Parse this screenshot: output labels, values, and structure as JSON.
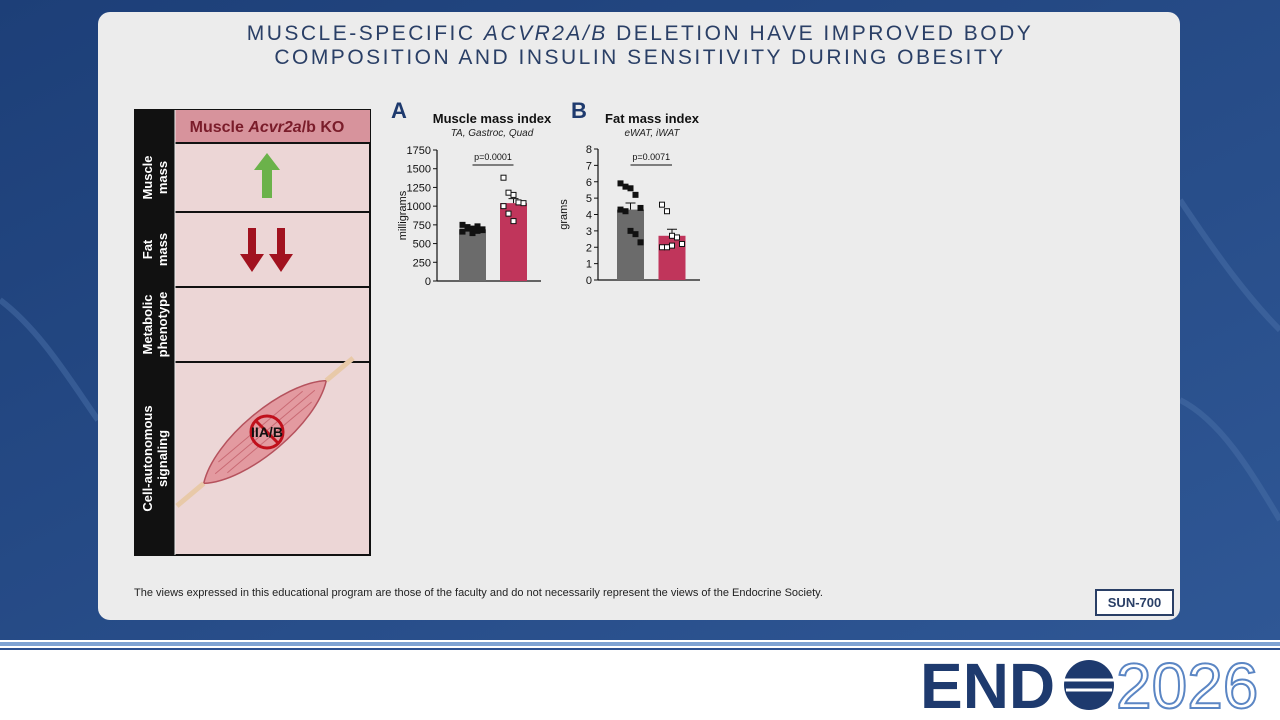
{
  "title_parts": [
    "MUSCLE-SPECIFIC ",
    "ACVR2A/B",
    " DELETION HAVE IMPROVED BODY COMPOSITION AND INSULIN SENSITIVITY DURING OBESITY"
  ],
  "panel": {
    "header": [
      "Muscle ",
      "Acvr2a",
      "/b KO"
    ],
    "rows": [
      [
        "Muscle",
        "mass"
      ],
      [
        "Fat",
        "mass"
      ],
      [
        "Metabolic",
        "phenotype"
      ],
      [
        "Cell-autonomous",
        "signaling"
      ]
    ],
    "receptor_label": "IIA/B"
  },
  "charts": [
    {
      "label": "A",
      "title": "Muscle mass index",
      "subtitle": "TA, Gastroc, Quad",
      "y_label": "milligrams",
      "annotation": "p=0.0001",
      "ylim": [
        0,
        1750
      ],
      "yticks": [
        0,
        250,
        500,
        750,
        1000,
        1250,
        1500,
        1750
      ],
      "series": [
        {
          "color": "#6b6b6b",
          "value": 690,
          "error": 30,
          "points": [
            750,
            720,
            700,
            730,
            680,
            660,
            700,
            640,
            670,
            690
          ]
        },
        {
          "color": "#c0355b",
          "value": 1040,
          "error": 60,
          "points": [
            1380,
            1180,
            1150,
            1050,
            1040,
            1000,
            900,
            800
          ]
        }
      ]
    },
    {
      "label": "B",
      "title": "Fat mass index",
      "subtitle": "eWAT, iWAT",
      "y_label": "grams",
      "annotation": "p=0.0071",
      "ylim": [
        0,
        8
      ],
      "yticks": [
        0,
        1,
        2,
        3,
        4,
        5,
        6,
        7,
        8
      ],
      "series": [
        {
          "color": "#6b6b6b",
          "value": 4.3,
          "error": 0.4,
          "points": [
            5.9,
            5.7,
            5.6,
            5.2,
            4.4,
            4.3,
            4.2,
            3.0,
            2.8,
            2.3
          ]
        },
        {
          "color": "#c0355b",
          "value": 2.7,
          "error": 0.4,
          "points": [
            4.6,
            4.2,
            2.7,
            2.6,
            2.2,
            2.0,
            2.0,
            2.1
          ]
        }
      ]
    }
  ],
  "footer": {
    "disclaimer": "The views expressed in this educational program are those of the faculty and do not necessarily represent the views of the Endocrine Society.",
    "code": "SUN-700"
  },
  "logo": {
    "brand": "END",
    "year": "2026"
  }
}
